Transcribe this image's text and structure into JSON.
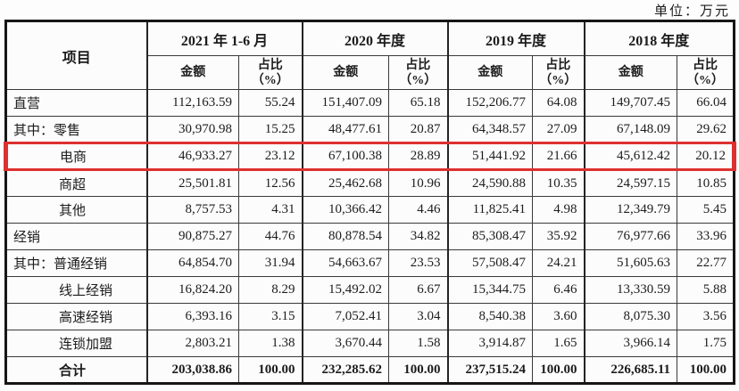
{
  "page": {
    "unit_label": "单位：万元"
  },
  "colors": {
    "highlight_border": "#dd3030",
    "outer_border": "#161616",
    "grid_line": "#3a3a3a",
    "text": "#1c1c1c"
  },
  "table": {
    "item_header": "项目",
    "amount_header": "金额",
    "ratio_header": "占比\n（%）",
    "col_groups": [
      {
        "period": "2021 年 1-6 月"
      },
      {
        "period": "2020 年度"
      },
      {
        "period": "2019 年度"
      },
      {
        "period": "2018 年度"
      }
    ],
    "rows": [
      {
        "label": "直营",
        "indent": 0,
        "bold": false,
        "highlight": false,
        "cells": [
          "112,163.59",
          "55.24",
          "151,407.09",
          "65.18",
          "152,206.77",
          "64.08",
          "149,707.45",
          "66.04"
        ]
      },
      {
        "label": "其中：零售",
        "indent": 0,
        "bold": false,
        "highlight": false,
        "cells": [
          "30,970.98",
          "15.25",
          "48,477.61",
          "20.87",
          "64,348.57",
          "27.09",
          "67,148.09",
          "29.62"
        ]
      },
      {
        "label": "电商",
        "indent": 1,
        "bold": false,
        "highlight": true,
        "cells": [
          "46,933.27",
          "23.12",
          "67,100.38",
          "28.89",
          "51,441.92",
          "21.66",
          "45,612.42",
          "20.12"
        ]
      },
      {
        "label": "商超",
        "indent": 1,
        "bold": false,
        "highlight": false,
        "cells": [
          "25,501.81",
          "12.56",
          "25,462.68",
          "10.96",
          "24,590.88",
          "10.35",
          "24,597.15",
          "10.85"
        ]
      },
      {
        "label": "其他",
        "indent": 1,
        "bold": false,
        "highlight": false,
        "cells": [
          "8,757.53",
          "4.31",
          "10,366.42",
          "4.46",
          "11,825.41",
          "4.98",
          "12,349.79",
          "5.45"
        ]
      },
      {
        "label": "经销",
        "indent": 0,
        "bold": false,
        "highlight": false,
        "cells": [
          "90,875.27",
          "44.76",
          "80,878.54",
          "34.82",
          "85,308.47",
          "35.92",
          "76,977.66",
          "33.96"
        ]
      },
      {
        "label": "其中：普通经销",
        "indent": 0,
        "bold": false,
        "highlight": false,
        "cells": [
          "64,854.70",
          "31.94",
          "54,663.67",
          "23.53",
          "57,508.47",
          "24.21",
          "51,605.63",
          "22.77"
        ]
      },
      {
        "label": "线上经销",
        "indent": 1,
        "bold": false,
        "highlight": false,
        "cells": [
          "16,824.20",
          "8.29",
          "15,492.02",
          "6.67",
          "15,344.75",
          "6.46",
          "13,330.59",
          "5.88"
        ]
      },
      {
        "label": "高速经销",
        "indent": 1,
        "bold": false,
        "highlight": false,
        "cells": [
          "6,393.16",
          "3.15",
          "7,052.41",
          "3.04",
          "8,540.38",
          "3.60",
          "8,075.30",
          "3.56"
        ]
      },
      {
        "label": "连锁加盟",
        "indent": 1,
        "bold": false,
        "highlight": false,
        "cells": [
          "2,803.21",
          "1.38",
          "3,670.44",
          "1.58",
          "3,914.87",
          "1.65",
          "3,966.14",
          "1.75"
        ]
      },
      {
        "label": "合计",
        "indent": 1,
        "bold": true,
        "highlight": false,
        "cells": [
          "203,038.86",
          "100.00",
          "232,285.62",
          "100.00",
          "237,515.24",
          "100.00",
          "226,685.11",
          "100.00"
        ]
      }
    ]
  }
}
